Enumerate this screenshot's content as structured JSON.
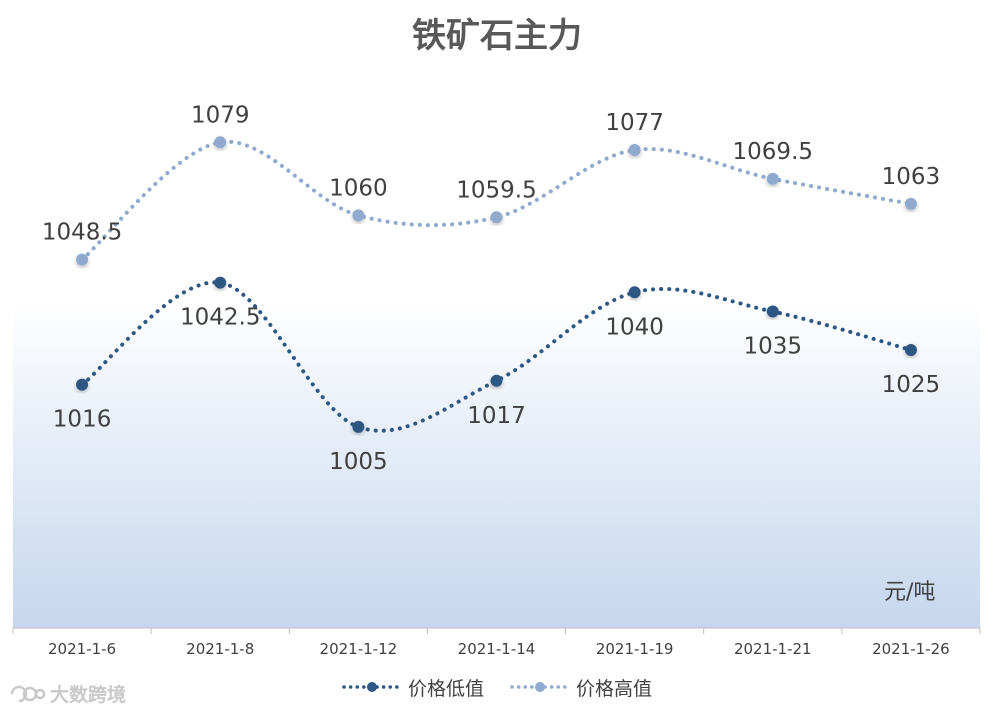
{
  "title": "铁矿石主力",
  "unit_label": "元/吨",
  "watermark": "大数跨境",
  "colors": {
    "low": "#2E5783",
    "high": "#8FA9CF",
    "band_top": "#FFFFFF",
    "band_bottom": "#C5D6EE",
    "drop": "#AABFDC",
    "text": "#404040",
    "axis": "#BFBFBF"
  },
  "legend": {
    "low": "价格低值",
    "high": "价格高值"
  },
  "chart_data": {
    "type": "line",
    "title": "铁矿石主力",
    "ylabel": "元/吨",
    "categories": [
      "2021-1-6",
      "2021-1-8",
      "2021-1-12",
      "2021-1-14",
      "2021-1-19",
      "2021-1-21",
      "2021-1-26"
    ],
    "series": [
      {
        "name": "价格低值",
        "values": [
          1016,
          1042.5,
          1005,
          1017,
          1040,
          1035,
          1025
        ]
      },
      {
        "name": "价格高值",
        "values": [
          1048.5,
          1079,
          1060,
          1059.5,
          1077,
          1069.5,
          1063
        ]
      }
    ],
    "ylim": [
      960,
      1090
    ],
    "smooth": true,
    "line_style": "dotted",
    "high_low_lines": true,
    "legend_position": "bottom",
    "grid": false
  }
}
